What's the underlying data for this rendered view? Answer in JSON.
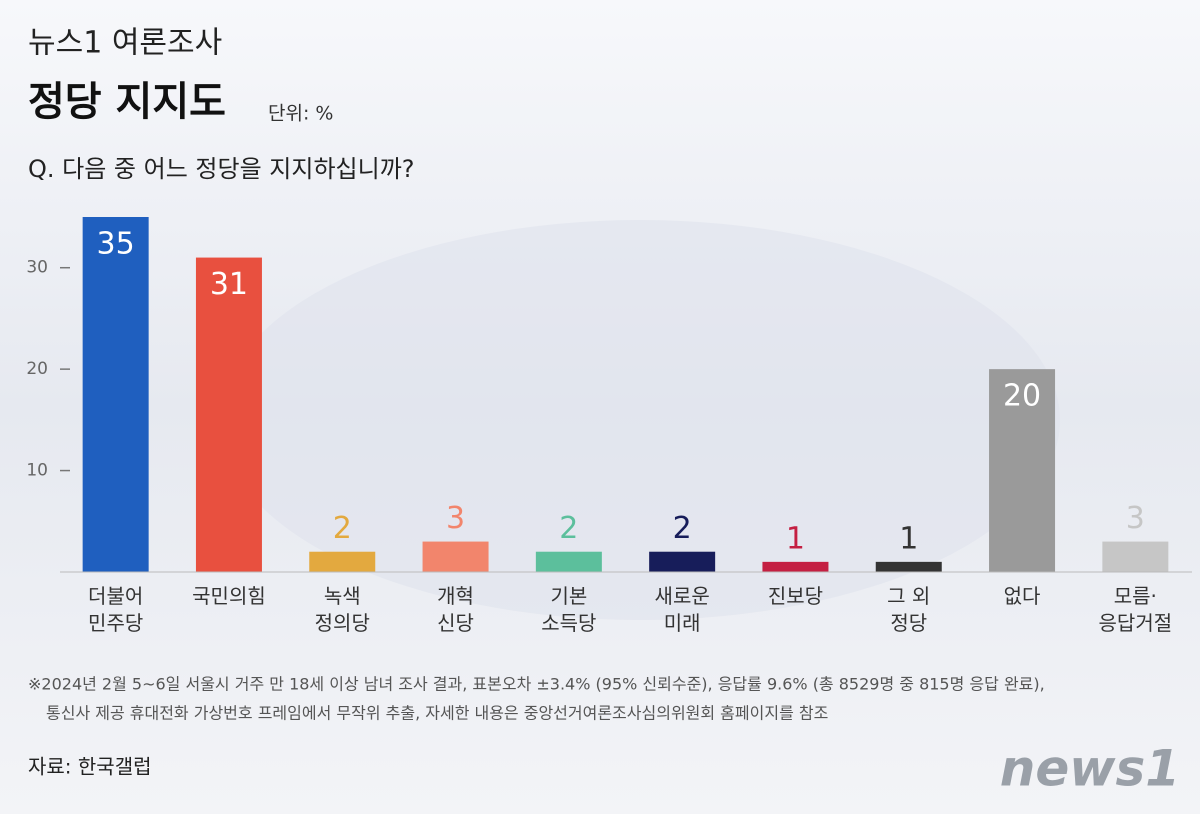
{
  "chart_data": {
    "type": "bar",
    "subtitle": "뉴스1 여론조사",
    "title": "정당 지지도",
    "unit": "단위: %",
    "question": "Q. 다음 중 어느 정당을 지지하십니까?",
    "categories": [
      "더불어\n민주당",
      "국민의힘",
      "녹색\n정의당",
      "개혁\n신당",
      "기본\n소득당",
      "새로운\n미래",
      "진보당",
      "그 외\n정당",
      "없다",
      "모름·\n응답거절"
    ],
    "values": [
      35,
      31,
      2,
      3,
      2,
      2,
      1,
      1,
      20,
      3
    ],
    "colors": [
      "#1f5fbf",
      "#e8503f",
      "#e3a93f",
      "#f2856c",
      "#5cbf9c",
      "#171d5a",
      "#c41f42",
      "#333333",
      "#9a9a9a",
      "#c6c6c6"
    ],
    "ylim": [
      0,
      35
    ],
    "yticks": [
      10,
      20,
      30
    ],
    "notes": [
      "※2024년 2월 5~6일 서울시 거주 만 18세 이상 남녀 조사 결과, 표본오차 ±3.4% (95% 신뢰수준), 응답률 9.6% (총  8529명 중 815명 응답 완료),",
      "통신사 제공 휴대전화 가상번호 프레임에서 무작위 추출, 자세한 내용은 중앙선거여론조사심의위원회 홈페이지를 참조"
    ],
    "source": "자료: 한국갤럽",
    "logo": "news1"
  }
}
